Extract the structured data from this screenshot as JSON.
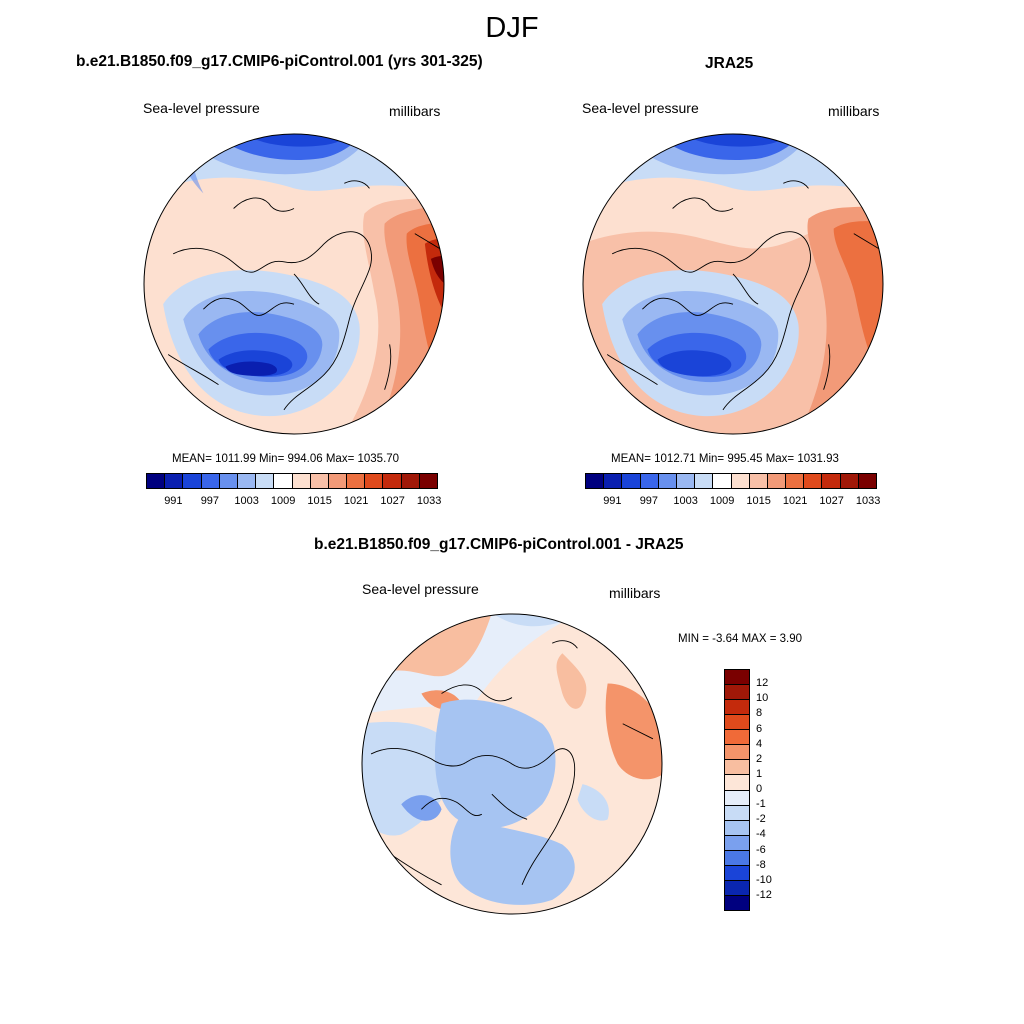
{
  "season": "DJF",
  "panels": [
    {
      "title": "b.e21.B1850.f09_g17.CMIP6-piControl.001 (yrs 301-325)",
      "left_label": "Sea-level pressure",
      "right_label": "millibars",
      "stats": "MEAN= 1011.99  Min= 994.06  Max= 1035.70",
      "colorbar_ticks": [
        "991",
        "997",
        "1003",
        "1009",
        "1015",
        "1021",
        "1027",
        "1033"
      ]
    },
    {
      "title": "JRA25",
      "left_label": "Sea-level pressure",
      "right_label": "millibars",
      "stats": "MEAN= 1012.71  Min= 995.45  Max= 1031.93",
      "colorbar_ticks": [
        "991",
        "997",
        "1003",
        "1009",
        "1015",
        "1021",
        "1027",
        "1033"
      ]
    }
  ],
  "diff_panel": {
    "title": "b.e21.B1850.f09_g17.CMIP6-piControl.001 - JRA25",
    "left_label": "Sea-level pressure",
    "right_label": "millibars",
    "stats": "MIN =  -3.64 MAX =   3.90",
    "colorbar_ticks": [
      "12",
      "10",
      "8",
      "6",
      "4",
      "2",
      "1",
      "0",
      "-1",
      "-2",
      "-4",
      "-6",
      "-8",
      "-10",
      "-12"
    ]
  },
  "colors": {
    "slp_scale": [
      "#00007f",
      "#0a1fb0",
      "#1a44d8",
      "#3a66ea",
      "#6890ee",
      "#9ab8f2",
      "#c8dcf6",
      "#ffffff",
      "#fde0d0",
      "#f8c0a8",
      "#f29a78",
      "#ec7040",
      "#e04a1c",
      "#c42a0c",
      "#a01808",
      "#7a0000"
    ],
    "diff_scale": [
      "#7a0000",
      "#a01808",
      "#c42a0c",
      "#e04a1c",
      "#f06a38",
      "#f4946a",
      "#f8bea0",
      "#fde6d8",
      "#e6eefa",
      "#c8dcf6",
      "#a6c4f2",
      "#7aa0ee",
      "#4a78e6",
      "#1a44d8",
      "#0a26b0",
      "#00007f"
    ]
  }
}
